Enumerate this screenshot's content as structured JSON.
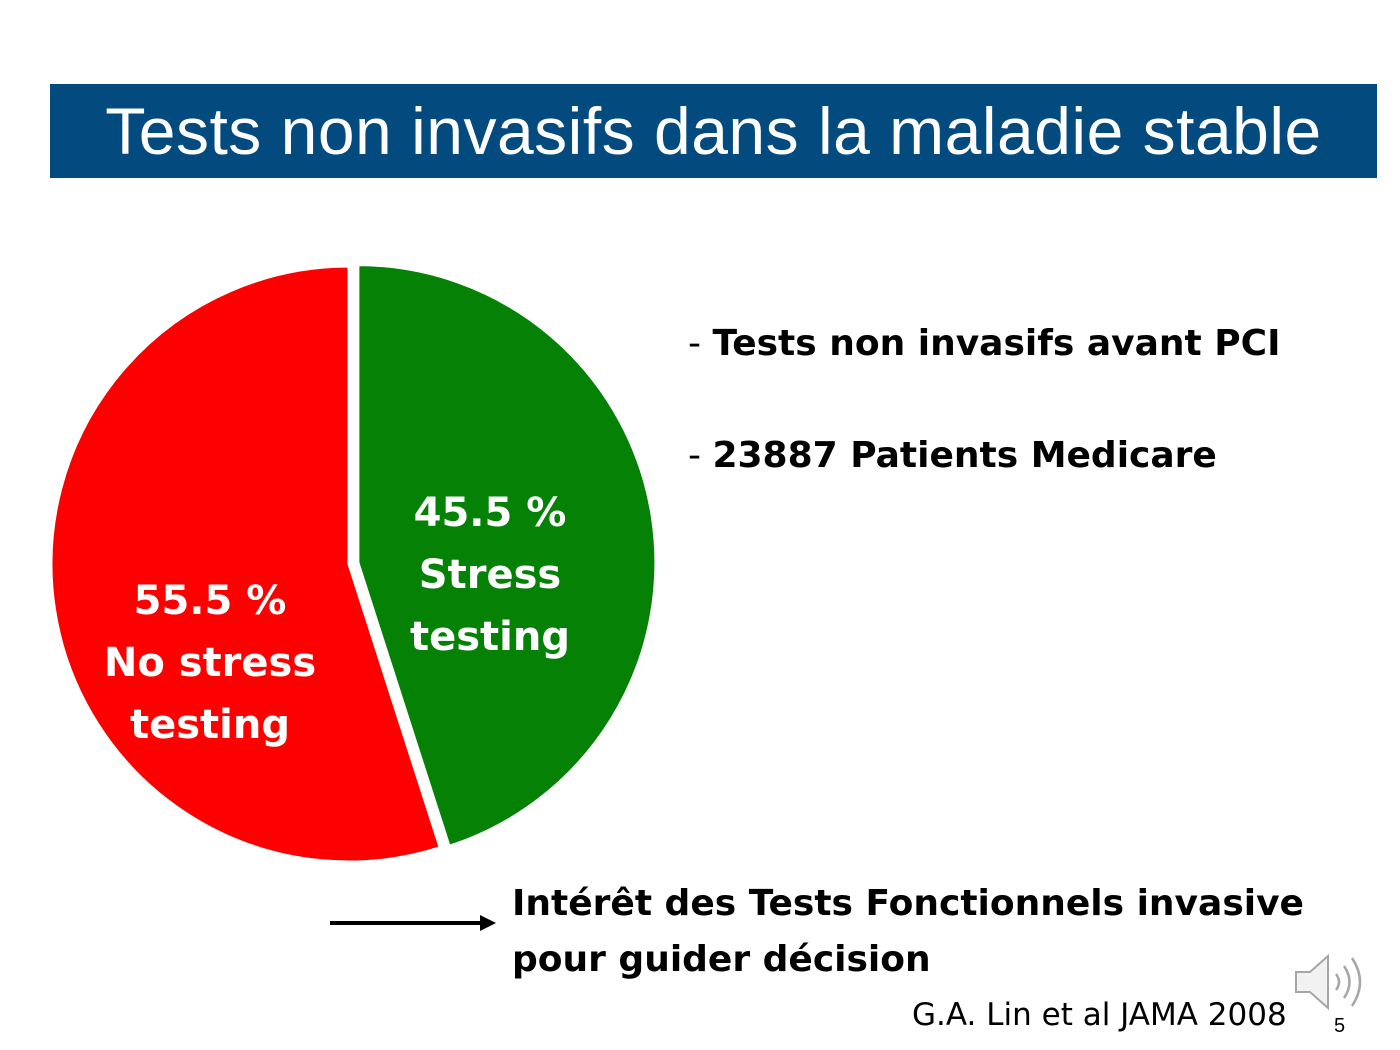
{
  "slide": {
    "title": "Tests non invasifs dans la maladie stable",
    "title_bar_color": "#034a7f",
    "slide_number": "5"
  },
  "chart_data": {
    "type": "pie",
    "title": "",
    "slices": [
      {
        "label_value": "45.5 %",
        "label_line1": "Stress",
        "label_line2": "testing",
        "value": 45.5,
        "color": "#058105",
        "exploded": true
      },
      {
        "label_value": "55.5 %",
        "label_line1": "No stress",
        "label_line2": "testing",
        "value": 55.5,
        "color": "#fe0000",
        "exploded": false
      }
    ],
    "start_angle": "top, clockwise",
    "legend": "none"
  },
  "bullets": [
    {
      "dash": "- ",
      "text": "Tests non invasifs avant PCI"
    },
    {
      "dash": "- ",
      "text": "23887 Patients Medicare"
    }
  ],
  "conclusion": {
    "line1": "Intérêt des Tests Fonctionnels invasive",
    "line2": "pour guider décision",
    "arrow_icon": "right-arrow-icon"
  },
  "citation": "G.A. Lin et al JAMA 2008",
  "speaker_icon": "speaker-icon"
}
